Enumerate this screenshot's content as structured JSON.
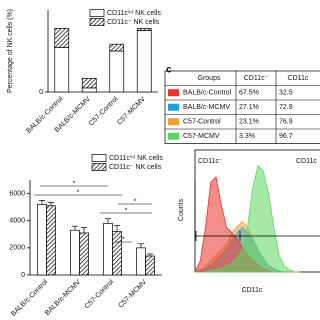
{
  "panel_label": "c",
  "chart_data": [
    {
      "type": "stacked-bar",
      "y_label": "Percentage of NK cells (%)",
      "categories": [
        "BALB/c-Control",
        "BALB/c-MCMV",
        "C57-Control",
        "C57-MCMV"
      ],
      "series": [
        {
          "name": "CD11cⁱⁿᵗ NK cells",
          "pattern": "solid",
          "values": [
            6.5,
            0.6,
            6,
            9
          ]
        },
        {
          "name": "CD11c⁻ NK cells",
          "pattern": "hatch",
          "values": [
            2.8,
            1.4,
            1,
            0.3
          ]
        }
      ],
      "ylim": [
        0,
        12
      ],
      "yticks": [
        0
      ]
    },
    {
      "type": "grouped-bar",
      "categories": [
        "BALB/c-Control",
        "BALB/c-MCMV",
        "C57-Control",
        "C57-MCMV"
      ],
      "series": [
        {
          "name": "CD11cⁱⁿᵗ NK cells",
          "pattern": "solid",
          "values": [
            5200,
            3300,
            3800,
            2000
          ],
          "errors": [
            300,
            300,
            350,
            300
          ]
        },
        {
          "name": "CD11c⁻ NK cells",
          "pattern": "hatch",
          "values": [
            5100,
            3100,
            3200,
            1400
          ],
          "errors": [
            250,
            400,
            450,
            150
          ]
        }
      ],
      "ylim": [
        0,
        7000
      ],
      "yticks": [
        0,
        2000,
        4000,
        6000
      ],
      "annotations": [
        "*",
        "*",
        "*",
        "*",
        "*"
      ]
    },
    {
      "type": "area",
      "y_label": "Counts",
      "x_label": "CD11c",
      "gate_labels": [
        "CD11c⁻",
        "CD11c"
      ],
      "x": [
        0,
        1,
        2,
        3,
        4,
        5,
        6,
        7,
        8,
        9,
        10,
        11,
        12,
        13,
        14,
        15,
        16,
        17,
        18,
        19,
        20
      ],
      "xlim": [
        0,
        20
      ],
      "ylim": [
        0,
        100
      ],
      "series": [
        {
          "color": "#f0a030",
          "values": [
            0,
            2,
            5,
            10,
            15,
            20,
            25,
            35,
            40,
            45,
            40,
            30,
            20,
            12,
            6,
            3,
            1,
            0,
            0,
            0,
            0
          ]
        },
        {
          "color": "#4aa8d8",
          "values": [
            0,
            1,
            3,
            6,
            10,
            15,
            20,
            28,
            35,
            40,
            35,
            28,
            20,
            12,
            6,
            3,
            1,
            0,
            0,
            0,
            0
          ]
        },
        {
          "color": "#e8332c",
          "values": [
            0,
            10,
            40,
            80,
            85,
            60,
            40,
            35,
            30,
            22,
            15,
            10,
            6,
            3,
            1,
            0,
            0,
            0,
            0,
            0,
            0
          ]
        },
        {
          "color": "#5cd65c",
          "values": [
            0,
            0,
            0,
            1,
            2,
            3,
            5,
            8,
            12,
            20,
            40,
            75,
            95,
            90,
            70,
            40,
            15,
            5,
            2,
            0,
            0
          ]
        }
      ]
    }
  ],
  "table": {
    "header": [
      "Groups",
      "CD11c⁻",
      "CD11c"
    ],
    "rows": [
      {
        "color": "#e8332c",
        "cells": [
          "BALB/c-Control",
          "67.5%",
          "32.5"
        ]
      },
      {
        "color": "#1fa0d8",
        "cells": [
          "BALB/c-MCMV",
          "27.1%",
          "72.9"
        ]
      },
      {
        "color": "#f0a030",
        "cells": [
          "C57-Control",
          "23.1%",
          "76.9"
        ]
      },
      {
        "color": "#5cd65c",
        "cells": [
          "C57-MCMV",
          "3.3%",
          "96.7"
        ]
      }
    ]
  }
}
